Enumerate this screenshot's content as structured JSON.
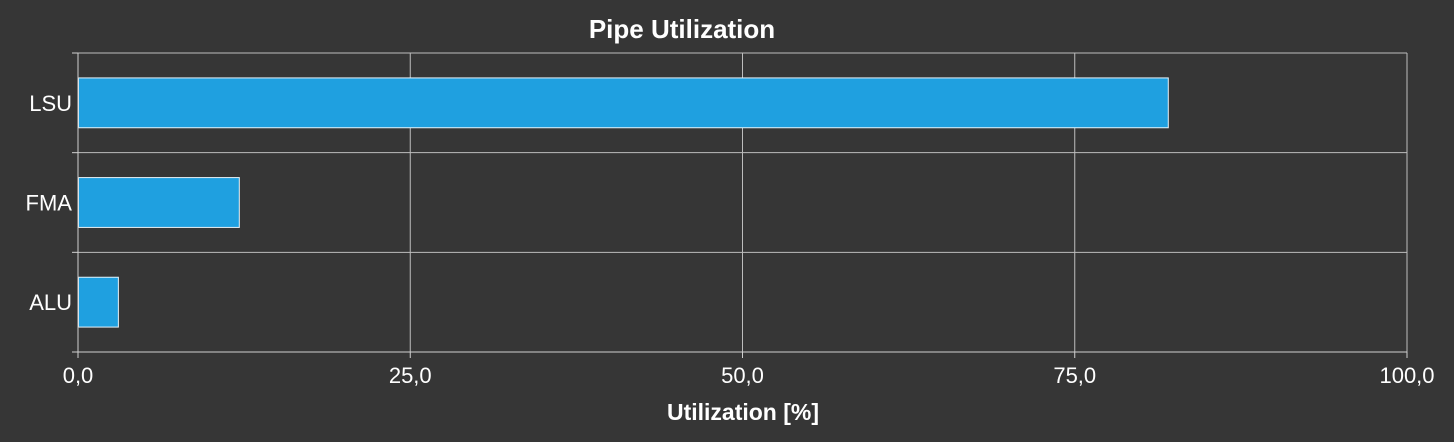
{
  "chart_data": {
    "type": "bar",
    "orientation": "horizontal",
    "title": "Pipe Utilization",
    "xlabel": "Utilization [%]",
    "ylabel": "",
    "categories": [
      "LSU",
      "FMA",
      "ALU"
    ],
    "values": [
      82.0,
      12.1,
      3.0
    ],
    "xlim": [
      0,
      100
    ],
    "xticks": [
      0,
      25,
      50,
      75,
      100
    ],
    "xtick_labels": [
      "0,0",
      "25,0",
      "50,0",
      "75,0",
      "100,0"
    ],
    "grid": true,
    "legend": "none",
    "colors": {
      "background": "#363636",
      "bar": "#1fa0e0",
      "grid": "#bdbdbd",
      "text": "#ffffff"
    }
  }
}
